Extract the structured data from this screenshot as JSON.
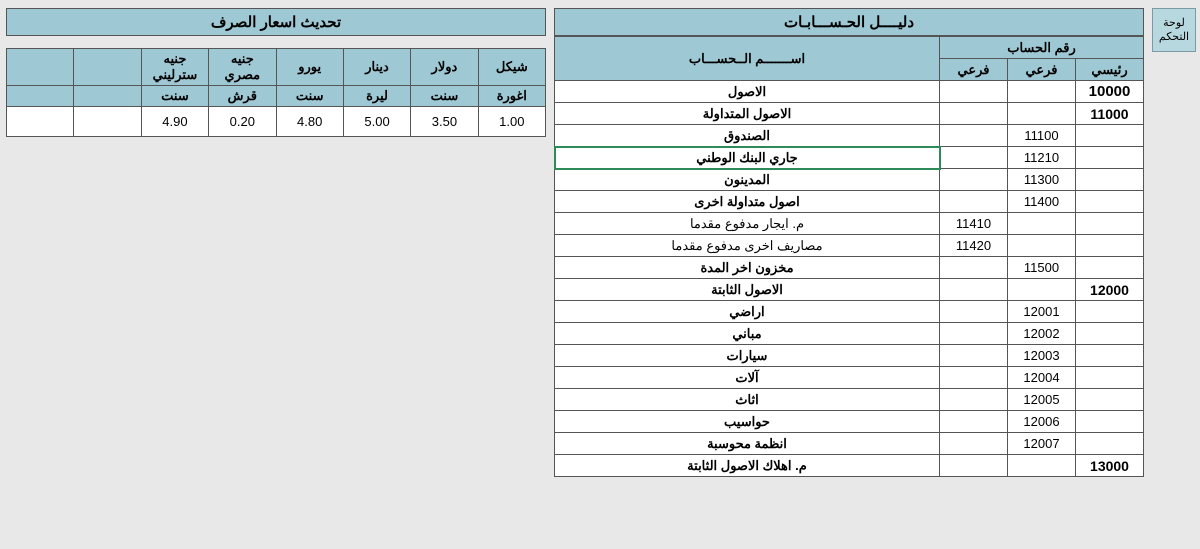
{
  "control_button": "لوحة التحكم",
  "accounts": {
    "title": "دليــــل الحـســـابـات",
    "header": {
      "num_group": "رقم الحساب",
      "main": "رئيسي",
      "sub": "فرعي",
      "sub2": "فرعي",
      "name": "اســـــــم الــحســـاب"
    },
    "rows": [
      {
        "main": "10000",
        "sub": "",
        "sub2": "",
        "name": "الاصول",
        "level": "main"
      },
      {
        "main": "11000",
        "sub": "",
        "sub2": "",
        "name": "الاصول المتداولة",
        "level": "main2"
      },
      {
        "main": "",
        "sub": "11100",
        "sub2": "",
        "name": "الصندوق",
        "level": "sub"
      },
      {
        "main": "",
        "sub": "11210",
        "sub2": "",
        "name": "جاري البنك الوطني",
        "level": "sub",
        "highlight": true
      },
      {
        "main": "",
        "sub": "11300",
        "sub2": "",
        "name": "المدينون",
        "level": "sub"
      },
      {
        "main": "",
        "sub": "11400",
        "sub2": "",
        "name": "اصول متداولة اخرى",
        "level": "sub"
      },
      {
        "main": "",
        "sub": "",
        "sub2": "11410",
        "name": "م. ايجار مدفوع مقدما",
        "level": "leaf"
      },
      {
        "main": "",
        "sub": "",
        "sub2": "11420",
        "name": "مصاريف اخرى مدفوع مقدما",
        "level": "leaf"
      },
      {
        "main": "",
        "sub": "11500",
        "sub2": "",
        "name": "مخزون اخر المدة",
        "level": "sub"
      },
      {
        "main": "12000",
        "sub": "",
        "sub2": "",
        "name": "الاصول الثابتة",
        "level": "main2"
      },
      {
        "main": "",
        "sub": "12001",
        "sub2": "",
        "name": "اراضي",
        "level": "sub"
      },
      {
        "main": "",
        "sub": "12002",
        "sub2": "",
        "name": "مباني",
        "level": "sub"
      },
      {
        "main": "",
        "sub": "12003",
        "sub2": "",
        "name": "سيارات",
        "level": "sub"
      },
      {
        "main": "",
        "sub": "12004",
        "sub2": "",
        "name": "آلات",
        "level": "sub"
      },
      {
        "main": "",
        "sub": "12005",
        "sub2": "",
        "name": "اثاث",
        "level": "sub"
      },
      {
        "main": "",
        "sub": "12006",
        "sub2": "",
        "name": "حواسيب",
        "level": "sub"
      },
      {
        "main": "",
        "sub": "12007",
        "sub2": "",
        "name": "انظمة محوسبة",
        "level": "sub"
      },
      {
        "main": "13000",
        "sub": "",
        "sub2": "",
        "name": "م. اهلاك الاصول الثابتة",
        "level": "main2"
      }
    ]
  },
  "exchange": {
    "title": "تحديث اسعار الصرف",
    "columns": [
      {
        "top": "شيكل",
        "bot": "اغورة"
      },
      {
        "top": "دولار",
        "bot": "سنت"
      },
      {
        "top": "دينار",
        "bot": "ليرة"
      },
      {
        "top": "يورو",
        "bot": "سنت"
      },
      {
        "top": "جنيه مصري",
        "bot": "قرش"
      },
      {
        "top": "جنيه سترليني",
        "bot": "سنت"
      },
      {
        "top": "",
        "bot": ""
      },
      {
        "top": "",
        "bot": ""
      }
    ],
    "values": [
      "1.00",
      "3.50",
      "5.00",
      "4.80",
      "0.20",
      "4.90",
      "",
      ""
    ]
  },
  "colors": {
    "header_bg": "#9ec9d4",
    "page_bg": "#e8e8e8",
    "border": "#555555",
    "highlight": "#2e8b57"
  }
}
